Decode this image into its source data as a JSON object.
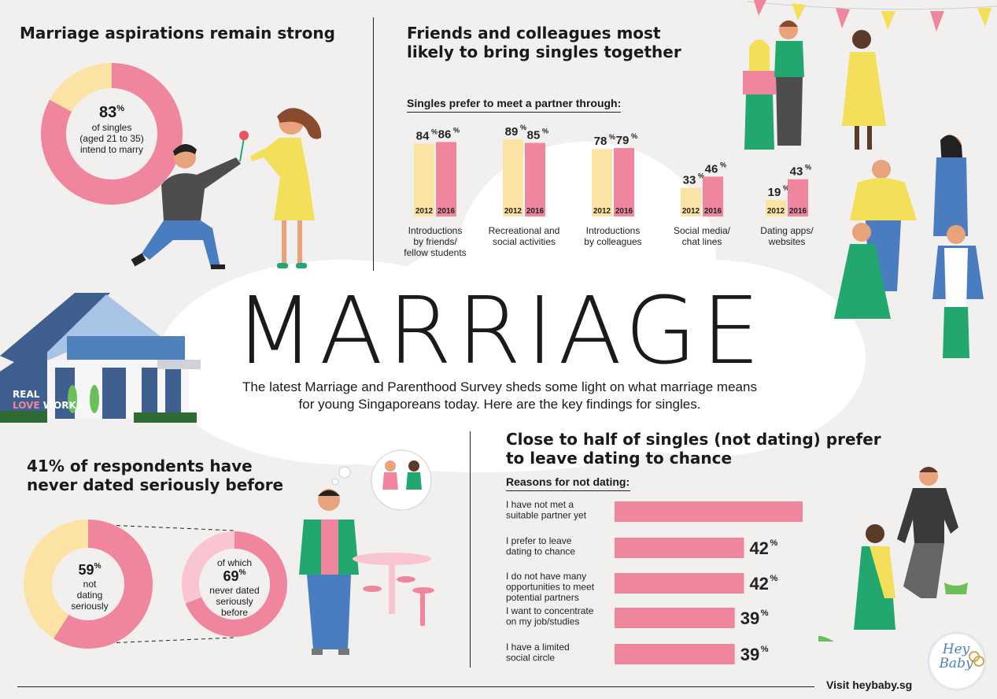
{
  "marriage_title": "MARRIAGE",
  "intro": {
    "line1": "The latest Marriage and Parenthood Survey sheds some light on what marriage means",
    "line2": "for young Singaporeans today. Here are the key findings for singles."
  },
  "section1": {
    "title": "Marriage aspirations remain strong",
    "value": "83",
    "pct_sign": "%",
    "caption1": "of singles",
    "caption2": "(aged 21 to 35)",
    "caption3": "intend to marry"
  },
  "section2": {
    "title_line1": "Friends and colleagues most",
    "title_line2": "likely to bring singles together",
    "subtitle": "Singles prefer to meet a partner through:"
  },
  "section3": {
    "title_line1": "41% of respondents have",
    "title_line2": "never dated seriously before",
    "left_value": "59",
    "left_caption1": "not",
    "left_caption2": "dating",
    "left_caption3": "seriously",
    "right_top": "of which",
    "right_value": "69",
    "right_caption1": "never dated",
    "right_caption2": "seriously",
    "right_caption3": "before"
  },
  "section4": {
    "title_line1": "Close to half of singles (not dating) prefer",
    "title_line2": "to leave dating to chance",
    "subtitle": "Reasons for not dating:"
  },
  "footer": {
    "visit": "Visit heybaby.sg"
  },
  "branding": {
    "real": "REAL",
    "love": "LOVE",
    "works": "WORKS",
    "logo_line1": "Hey",
    "logo_line2": "Baby"
  },
  "colors": {
    "pink": "#f0869e",
    "light_pink": "#f9c5d1",
    "cream": "#fde3a3",
    "green": "#22a86f",
    "yellow": "#f4df5a",
    "blue": "#4f81bd",
    "dark": "#1a1a1a"
  },
  "chart_data": [
    {
      "type": "pie",
      "values": [
        83,
        17
      ],
      "center_text": "83%"
    },
    {
      "type": "bar",
      "categories": [
        "Introductions by friends/ fellow students",
        "Recreational and social activities",
        "Introductions by colleagues",
        "Social media/ chat lines",
        "Dating apps/ websites"
      ],
      "category_lines": [
        [
          "Introductions",
          "by friends/",
          "fellow students"
        ],
        [
          "Recreational and",
          "social activities"
        ],
        [
          "Introductions",
          "by colleagues"
        ],
        [
          "Social media/",
          "chat lines"
        ],
        [
          "Dating apps/",
          "websites"
        ]
      ],
      "series": [
        {
          "name": "2012",
          "values": [
            84,
            89,
            78,
            33,
            19
          ],
          "color": "#fde3a3"
        },
        {
          "name": "2016",
          "values": [
            86,
            85,
            79,
            46,
            43
          ],
          "color": "#f0869e"
        }
      ],
      "ylim": [
        0,
        100
      ]
    },
    {
      "type": "pie",
      "values": [
        59,
        41
      ],
      "center_text": "59%"
    },
    {
      "type": "pie",
      "values": [
        69,
        31
      ],
      "center_text": "69%"
    },
    {
      "type": "bar",
      "orientation": "horizontal",
      "categories": [
        "I have not met a suitable partner yet",
        "I prefer to leave dating to chance",
        "I do not have many opportunities to meet potential partners",
        "I want to concentrate on my job/studies",
        "I have a limited social circle"
      ],
      "category_lines": [
        [
          "I have not met a",
          "suitable partner yet"
        ],
        [
          "I prefer to leave",
          "dating to chance"
        ],
        [
          "I do not have many",
          "opportunities to meet",
          "potential partners"
        ],
        [
          "I want to concentrate",
          "on my job/studies"
        ],
        [
          "I have a limited",
          "social circle"
        ]
      ],
      "values": [
        71,
        42,
        42,
        39,
        39
      ],
      "xlim": [
        0,
        71
      ]
    }
  ]
}
